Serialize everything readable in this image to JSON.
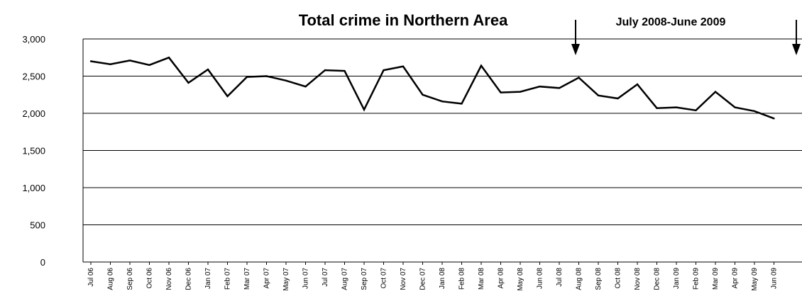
{
  "chart_data": {
    "type": "line",
    "title": "Total crime in Northern Area",
    "annotation": "July 2008-June 2009",
    "categories": [
      "Jul 06",
      "Aug 06",
      "Sep 06",
      "Oct 06",
      "Nov 06",
      "Dec 06",
      "Jan 07",
      "Feb 07",
      "Mar 07",
      "Apr 07",
      "May 07",
      "Jun 07",
      "Jul 07",
      "Aug 07",
      "Sep 07",
      "Oct 07",
      "Nov 07",
      "Dec 07",
      "Jan 08",
      "Feb 08",
      "Mar 08",
      "Apr 08",
      "May 08",
      "Jun 08",
      "Jul 08",
      "Aug 08",
      "Sep 08",
      "Oct 08",
      "Nov 08",
      "Dec 08",
      "Jan 09",
      "Feb 09",
      "Mar 09",
      "Apr 09",
      "May 09",
      "Jun 09"
    ],
    "series": [
      {
        "values": [
          2700,
          2660,
          2710,
          2650,
          2750,
          2410,
          2590,
          2230,
          2490,
          2500,
          2440,
          2360,
          2580,
          2570,
          2050,
          2580,
          2630,
          2250,
          2160,
          2130,
          2640,
          2280,
          2290,
          2360,
          2340,
          2480,
          2240,
          2200,
          2390,
          2070,
          2080,
          2040,
          2290,
          2080,
          2030,
          1930
        ]
      }
    ],
    "yticks": [
      "0",
      "500",
      "1,000",
      "1,500",
      "2,000",
      "2,500",
      "3,000"
    ],
    "ytick_values": [
      0,
      500,
      1000,
      1500,
      2000,
      2500,
      3000
    ],
    "ylim": [
      0,
      3000
    ],
    "grid": true,
    "arrows_at": [
      "Jul 08",
      "Jun 09"
    ]
  }
}
